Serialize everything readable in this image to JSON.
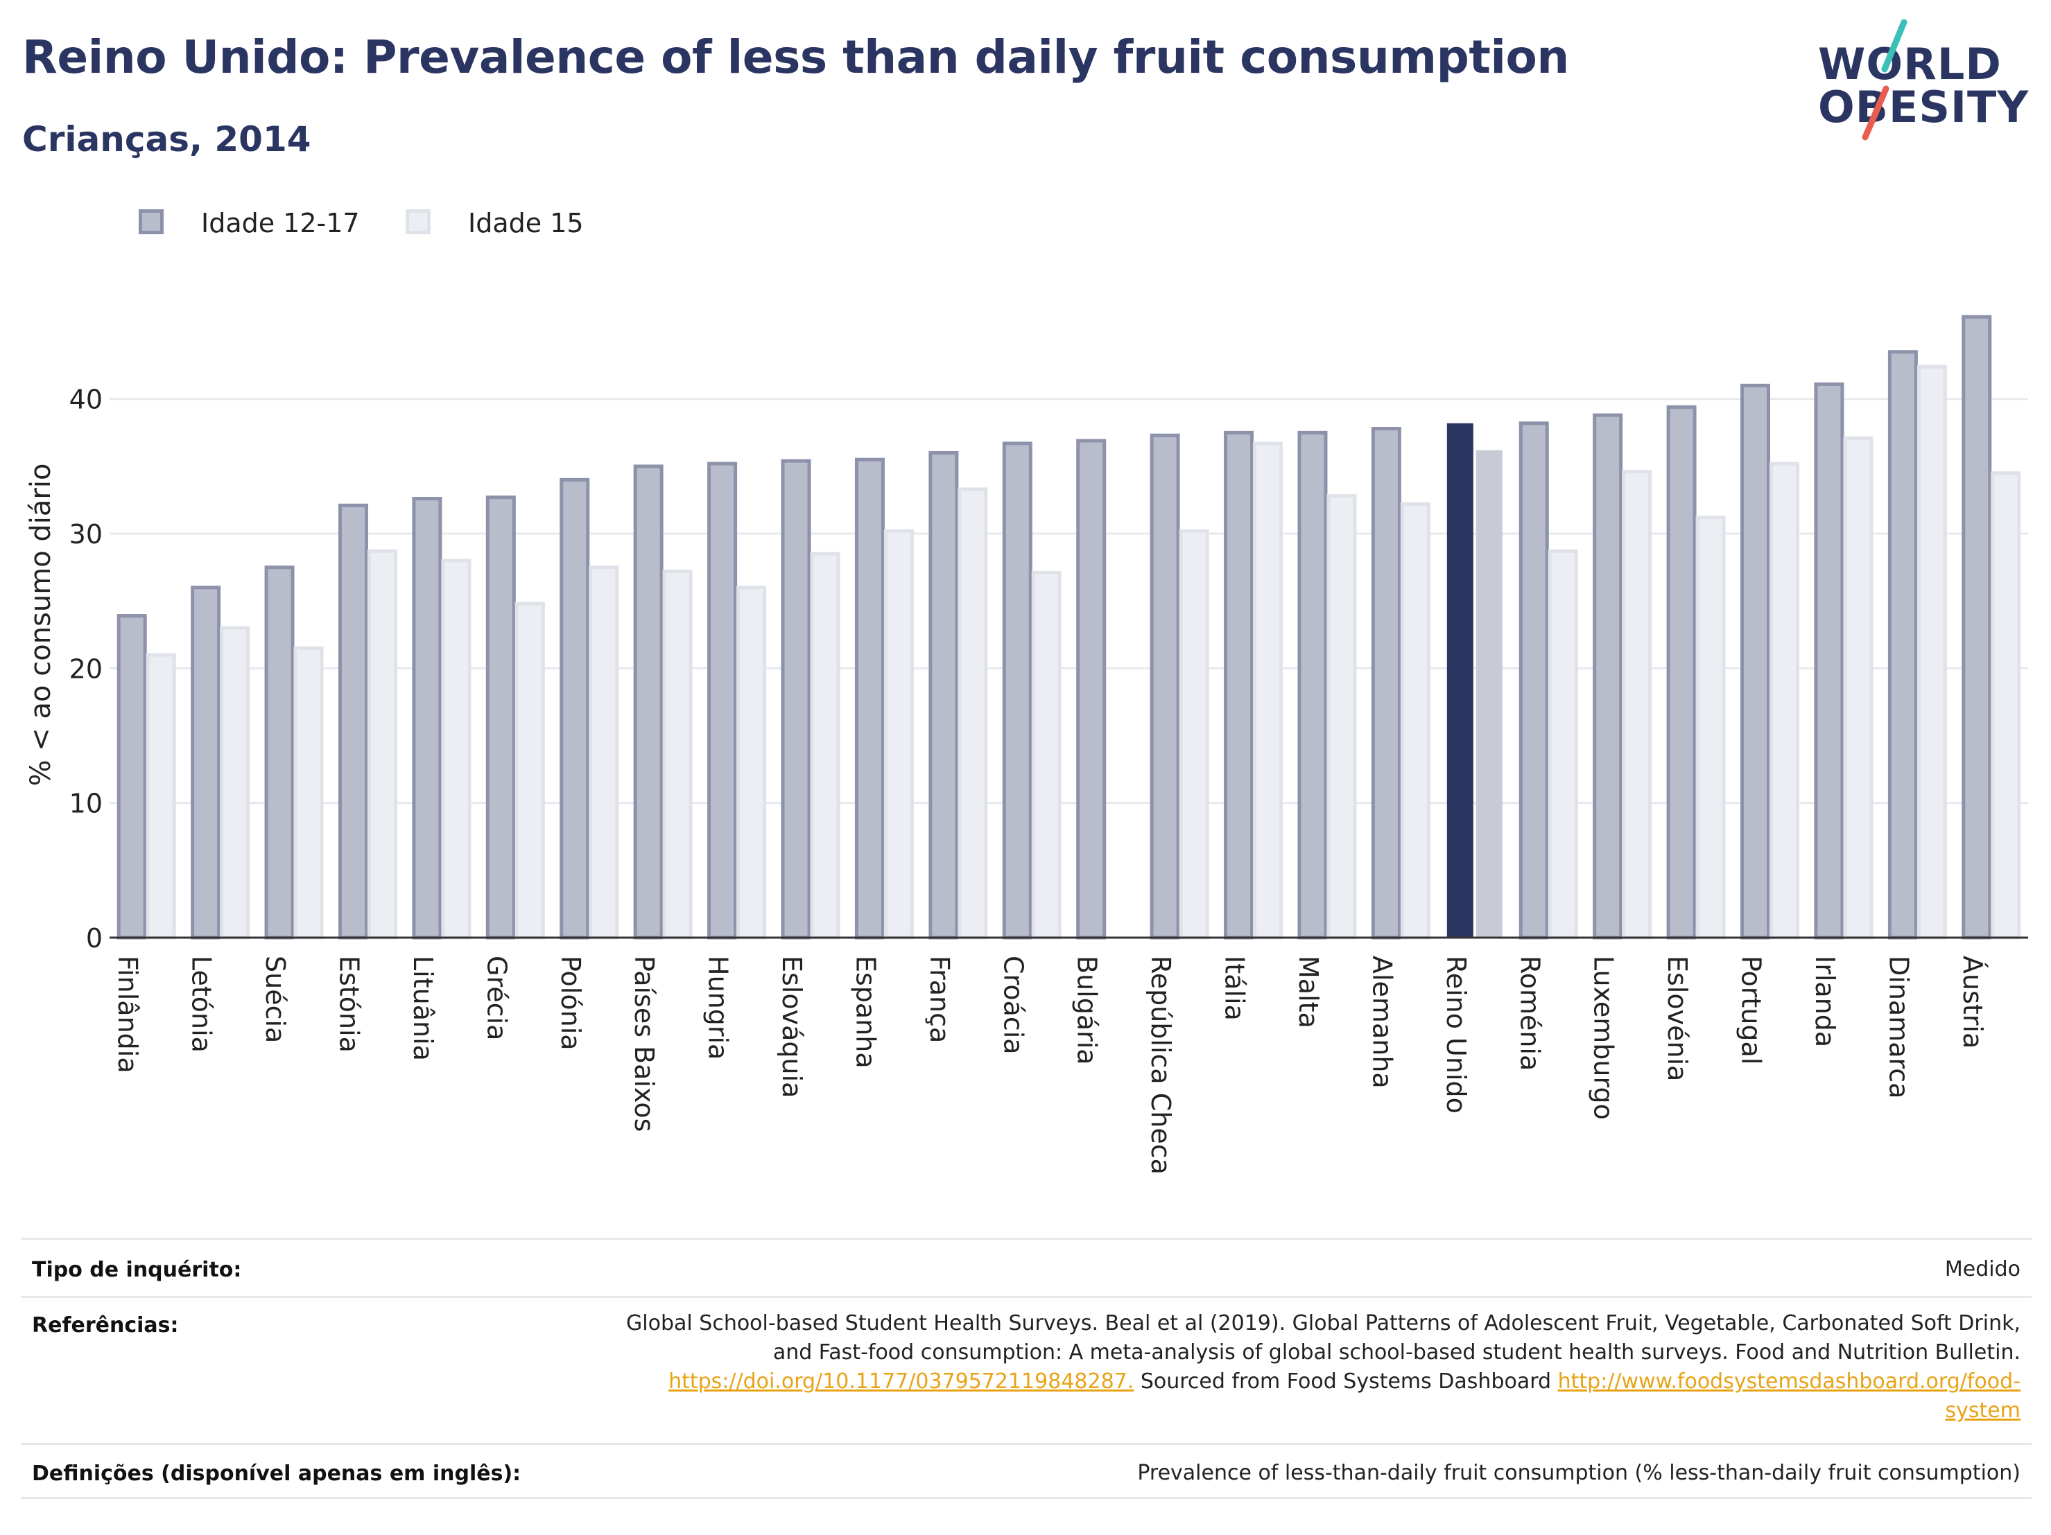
{
  "header": {
    "title": "Reino Unido: Prevalence of less than daily fruit consumption",
    "subtitle": "Crianças, 2014"
  },
  "logo": {
    "line1": "WORLD",
    "line2": "OBESITY"
  },
  "colors": {
    "primary": "#2b3561",
    "series1_fill": "#b9bccb",
    "series1_stroke": "#8d92aa",
    "series2_fill": "#eceef3",
    "series2_stroke": "#e0e2e9",
    "highlight1": "#2b3561",
    "highlight2": "#c8cad5",
    "logo_teal": "#3bbfb8",
    "logo_coral": "#e85d4f",
    "link": "#e8a317"
  },
  "chart_data": {
    "type": "bar",
    "ylabel": "% < ao consumo diário",
    "xlabel": "",
    "ylim": [
      0,
      47.5
    ],
    "yticks": [
      0,
      10,
      20,
      30,
      40
    ],
    "grid": true,
    "legend_position": "top-left",
    "highlight_category": "Reino Unido",
    "categories": [
      "Finlândia",
      "Letónia",
      "Suécia",
      "Estónia",
      "Lituânia",
      "Grécia",
      "Polónia",
      "Países Baixos",
      "Hungria",
      "Eslováquia",
      "Espanha",
      "França",
      "Croácia",
      "Bulgária",
      "República Checa",
      "Itália",
      "Malta",
      "Alemanha",
      "Reino Unido",
      "Roménia",
      "Luxemburgo",
      "Eslovénia",
      "Portugal",
      "Irlanda",
      "Dinamarca",
      "Áustria"
    ],
    "series": [
      {
        "name": "Idade 12-17",
        "values": [
          23.9,
          26.0,
          27.5,
          32.1,
          32.6,
          32.7,
          34.0,
          35.0,
          35.2,
          35.4,
          35.5,
          36.0,
          36.7,
          36.9,
          37.3,
          37.5,
          37.5,
          37.8,
          38.2,
          38.2,
          38.8,
          39.4,
          41.0,
          41.1,
          43.5,
          46.1
        ]
      },
      {
        "name": "Idade 15",
        "values": [
          21.0,
          23.0,
          21.5,
          28.7,
          28.0,
          24.8,
          27.5,
          27.2,
          26.0,
          28.5,
          30.2,
          33.3,
          27.1,
          null,
          30.2,
          36.7,
          32.8,
          32.2,
          36.2,
          28.7,
          34.6,
          31.2,
          35.2,
          37.1,
          42.4,
          34.5
        ]
      }
    ]
  },
  "info": {
    "rows": [
      {
        "key": "Tipo de inquérito:",
        "value": "Medido"
      },
      {
        "key": "Referências:",
        "value_line1": "Global School-based Student Health Surveys. Beal et al (2019). Global Patterns of Adolescent Fruit, Vegetable, Carbonated Soft Drink,",
        "value_line2": "and Fast-food consumption: A meta-analysis of global school-based student health surveys. Food and Nutrition Bulletin.",
        "link1": "https://doi.org/10.1177/0379572119848287.",
        "mid_text": " Sourced from Food Systems Dashboard ",
        "link2a": "http://www.foodsystemsdashboard.org/food-",
        "link2b": "system"
      },
      {
        "key": "Definições (disponível apenas em inglês):",
        "value": "Prevalence of less-than-daily fruit consumption (% less-than-daily fruit consumption)"
      }
    ]
  }
}
